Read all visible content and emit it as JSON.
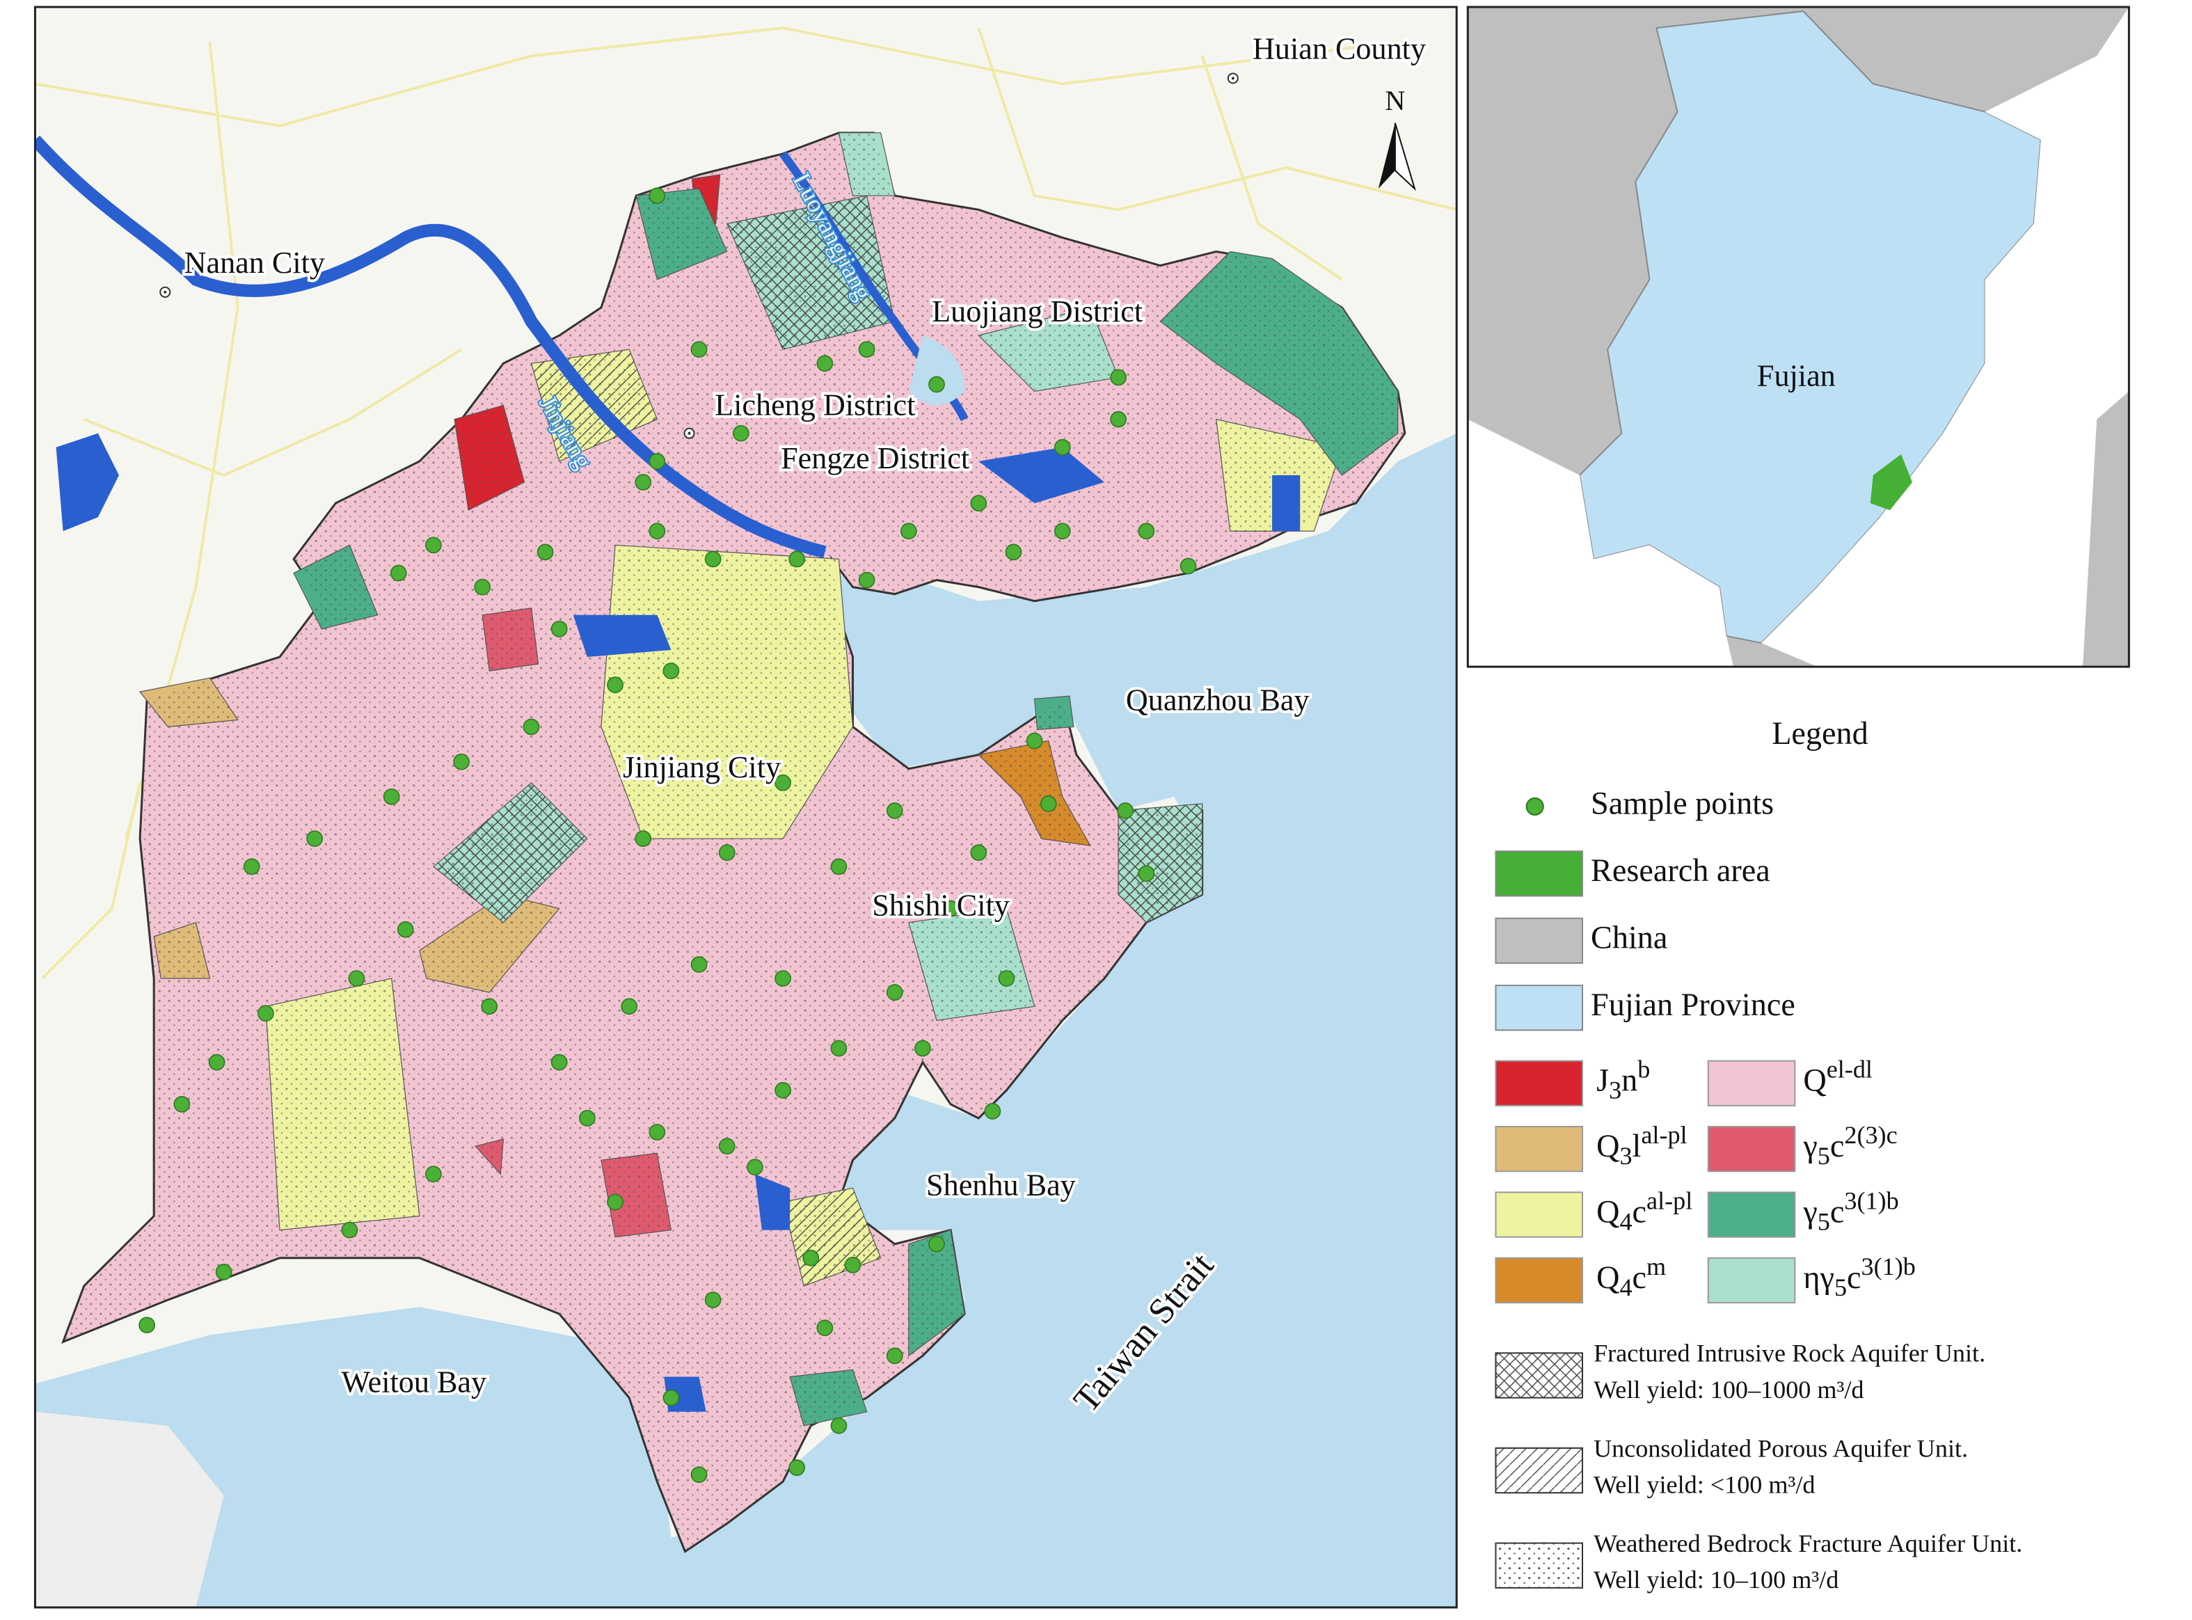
{
  "map": {
    "place_labels": [
      "Huian County",
      "Nanan City",
      "Luojiang District",
      "Licheng District",
      "Fengze District",
      "Jinjiang City",
      "Shishi City",
      "Quanzhou Bay",
      "Shenhu Bay",
      "Weitou Bay",
      "Taiwan Strait",
      "Luoyangjiang",
      "Jinjiang"
    ],
    "north_label": "N",
    "inset": {
      "label": "Fujian"
    }
  },
  "legend": {
    "title": "Legend",
    "items": [
      {
        "label": "Sample points",
        "color": "#4caf36"
      },
      {
        "label": "Research area",
        "color": "#45b035"
      },
      {
        "label": "China",
        "color": "#bfbfbf"
      },
      {
        "label": "Fujian Province",
        "color": "#bde0f5"
      }
    ],
    "formations": [
      {
        "symbol": "J",
        "subscript": "3",
        "letters": "n",
        "superscript": "b",
        "color": "#d9232e"
      },
      {
        "symbol": "Q",
        "subscript": "3",
        "letters": "l",
        "superscript": "al-pl",
        "color": "#e0bb78"
      },
      {
        "symbol": "Q",
        "subscript": "4",
        "letters": "c",
        "superscript": "al-pl",
        "color": "#eef3a0"
      },
      {
        "symbol": "Q",
        "subscript": "4",
        "letters": "c",
        "superscript": "m",
        "color": "#d68a2a"
      },
      {
        "symbol": "Q",
        "superscript": "el-dl",
        "color": "#f2c4d2"
      },
      {
        "symbol": "γ",
        "subscript": "5",
        "letters": "c",
        "superscript": "2(3)c",
        "color": "#e05a6f"
      },
      {
        "symbol": "γ",
        "subscript": "5",
        "letters": "c",
        "superscript": "3(1)b",
        "color": "#4caf8a"
      },
      {
        "symbol": "ηγ",
        "subscript": "5",
        "letters": "c",
        "superscript": "3(1)b",
        "color": "#a9e0cc"
      }
    ],
    "aquifer_units": [
      {
        "name": "Fractured Intrusive Rock Aquifer Unit.",
        "yield": "Well yield: 100–1000 m³/d",
        "pattern": "crosshatch"
      },
      {
        "name": "Unconsolidated Porous Aquifer Unit.",
        "yield": "Well yield: <100 m³/d",
        "pattern": "hatch"
      },
      {
        "name": "Weathered Bedrock Fracture Aquifer Unit.",
        "yield": "Well yield: 10–100 m³/d",
        "pattern": "dots"
      }
    ]
  }
}
